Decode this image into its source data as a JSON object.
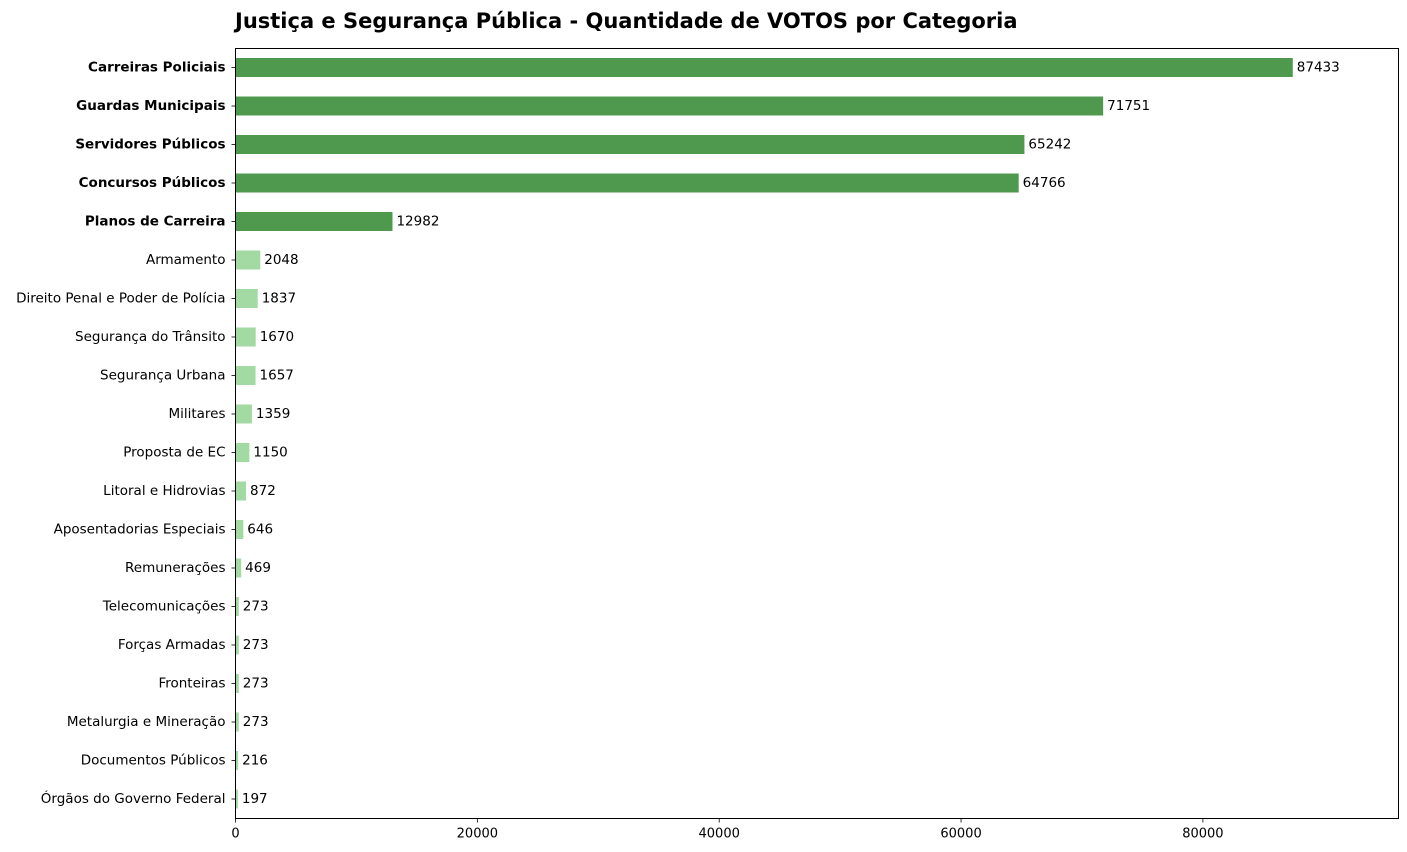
{
  "chart_data": {
    "type": "bar",
    "orientation": "horizontal",
    "title": "Justiça e Segurança Pública - Quantidade de VOTOS por Categoria",
    "xlabel": "",
    "ylabel": "",
    "xlim": [
      0,
      96176
    ],
    "xticks": [
      0,
      20000,
      40000,
      60000,
      80000
    ],
    "xtick_labels": [
      "0",
      "20000",
      "40000",
      "60000",
      "80000"
    ],
    "grid": false,
    "highlight_color": "#4f994f",
    "normal_color": "#a3d9a3",
    "categories": [
      "Carreiras Policiais",
      "Guardas Municipais",
      "Servidores Públicos",
      "Concursos Públicos",
      "Planos de Carreira",
      "Armamento",
      "Direito Penal e Poder de Polícia",
      "Segurança do Trânsito",
      "Segurança Urbana",
      "Militares",
      "Proposta de EC",
      "Litoral e Hidrovias",
      "Aposentadorias Especiais",
      "Remunerações",
      "Telecomunicações",
      "Forças Armadas",
      "Fronteiras",
      "Metalurgia e Mineração",
      "Documentos Públicos",
      "Órgãos do Governo Federal"
    ],
    "values": [
      87433,
      71751,
      65242,
      64766,
      12982,
      2048,
      1837,
      1670,
      1657,
      1359,
      1150,
      872,
      646,
      469,
      273,
      273,
      273,
      273,
      216,
      197
    ],
    "value_labels": [
      "87433",
      "71751",
      "65242",
      "64766",
      "12982",
      "2048",
      "1837",
      "1670",
      "1657",
      "1359",
      "1150",
      "872",
      "646",
      "469",
      "273",
      "273",
      "273",
      "273",
      "216",
      "197"
    ],
    "highlighted": [
      true,
      true,
      true,
      true,
      true,
      false,
      false,
      false,
      false,
      false,
      false,
      false,
      false,
      false,
      false,
      false,
      false,
      false,
      false,
      false
    ]
  }
}
